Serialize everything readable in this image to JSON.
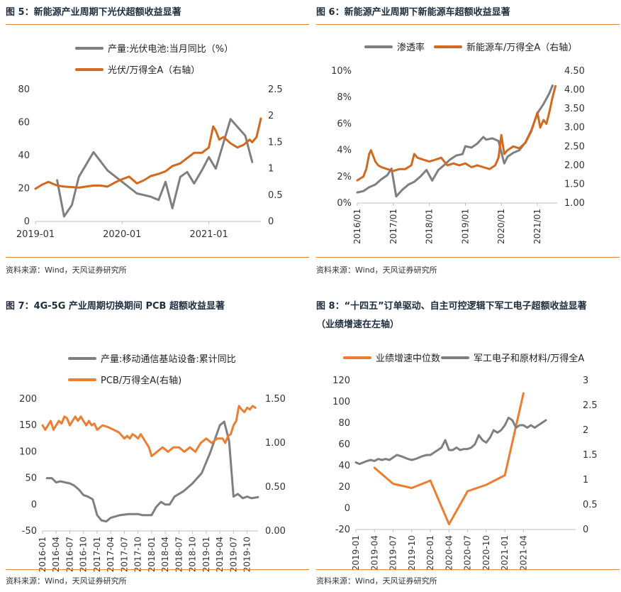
{
  "colors": {
    "gray": "#7f7f7f",
    "orange_dark": "#d2691e",
    "orange": "#ed7d31",
    "rule": "#e08a2e"
  },
  "source": "资料来源：Wind，天风证券研究所",
  "chart_data": [
    {
      "id": "fig5",
      "type": "line",
      "title": "图 5：新能源产业周期下光伏超额收益显著",
      "ylim": [
        0,
        80
      ],
      "yticks": [
        0,
        20,
        40,
        60,
        80
      ],
      "y2lim": [
        0,
        2.5
      ],
      "y2ticks": [
        "0",
        "0.5",
        "1",
        "1.5",
        "2",
        "2.5"
      ],
      "xlim": [
        2019.0,
        2021.6
      ],
      "xticks": [
        {
          "x": 2019.0,
          "label": "2019-01"
        },
        {
          "x": 2020.0,
          "label": "2020-01"
        },
        {
          "x": 2021.0,
          "label": "2021-01"
        }
      ],
      "series": [
        {
          "name": "产量:光伏电池:当月同比（%）",
          "axis": "left",
          "color": "#7f7f7f",
          "x": [
            2019.25,
            2019.33,
            2019.42,
            2019.5,
            2019.67,
            2019.83,
            2020.0,
            2020.17,
            2020.33,
            2020.42,
            2020.5,
            2020.58,
            2020.67,
            2020.75,
            2020.83,
            2020.92,
            2021.0,
            2021.08,
            2021.25,
            2021.42,
            2021.5
          ],
          "y": [
            25,
            3,
            10,
            27,
            42,
            31,
            24,
            17,
            15,
            13,
            24,
            8,
            27,
            30,
            23,
            31,
            39,
            32,
            62,
            52,
            36
          ]
        },
        {
          "name": "光伏/万得全A（右轴）",
          "axis": "right",
          "color": "#d2691e",
          "x": [
            2019.0,
            2019.08,
            2019.15,
            2019.25,
            2019.33,
            2019.42,
            2019.5,
            2019.58,
            2019.67,
            2019.75,
            2019.83,
            2019.92,
            2020.0,
            2020.08,
            2020.17,
            2020.25,
            2020.33,
            2020.42,
            2020.5,
            2020.58,
            2020.67,
            2020.75,
            2020.83,
            2020.92,
            2021.0,
            2021.05,
            2021.08,
            2021.12,
            2021.17,
            2021.25,
            2021.33,
            2021.4,
            2021.47,
            2021.5,
            2021.55,
            2021.6
          ],
          "y": [
            0.62,
            0.7,
            0.75,
            0.68,
            0.66,
            0.65,
            0.64,
            0.66,
            0.68,
            0.68,
            0.66,
            0.74,
            0.8,
            0.85,
            0.72,
            0.78,
            0.86,
            0.9,
            0.95,
            1.05,
            1.1,
            1.2,
            1.3,
            1.3,
            1.4,
            1.8,
            1.72,
            1.55,
            1.6,
            1.48,
            1.4,
            1.45,
            1.55,
            1.5,
            1.6,
            1.95
          ]
        }
      ]
    },
    {
      "id": "fig6",
      "type": "line",
      "title": "图 6：新能源产业周期下新能源车超额收益显著",
      "ylim": [
        0,
        10
      ],
      "yticks": [
        "0%",
        "2%",
        "4%",
        "6%",
        "8%",
        "10%"
      ],
      "y2lim": [
        1.0,
        4.5
      ],
      "y2ticks": [
        "1.00",
        "1.50",
        "2.00",
        "2.50",
        "3.00",
        "3.50",
        "4.00",
        "4.50"
      ],
      "xlim": [
        2016.0,
        2021.55
      ],
      "xticks": [
        {
          "x": 2016.0,
          "label": "2016/01"
        },
        {
          "x": 2017.0,
          "label": "2017/01"
        },
        {
          "x": 2018.0,
          "label": "2018/01"
        },
        {
          "x": 2019.0,
          "label": "2019/01"
        },
        {
          "x": 2020.0,
          "label": "2020/01"
        },
        {
          "x": 2021.0,
          "label": "2021/01"
        }
      ],
      "series": [
        {
          "name": "渗透率",
          "axis": "left",
          "color": "#7f7f7f",
          "x": [
            2016.0,
            2016.17,
            2016.33,
            2016.5,
            2016.67,
            2016.83,
            2016.95,
            2017.08,
            2017.25,
            2017.42,
            2017.58,
            2017.75,
            2017.92,
            2018.08,
            2018.25,
            2018.42,
            2018.58,
            2018.75,
            2018.92,
            2019.0,
            2019.17,
            2019.33,
            2019.5,
            2019.58,
            2019.75,
            2019.92,
            2020.08,
            2020.17,
            2020.33,
            2020.5,
            2020.67,
            2020.83,
            2021.0,
            2021.17,
            2021.33,
            2021.42
          ],
          "y": [
            0.8,
            0.9,
            1.2,
            1.4,
            1.8,
            2.1,
            2.6,
            0.5,
            1.0,
            1.4,
            1.6,
            2.0,
            2.5,
            1.7,
            2.5,
            2.9,
            3.3,
            3.6,
            3.7,
            4.3,
            4.2,
            4.5,
            5.0,
            4.8,
            4.9,
            4.7,
            3.0,
            3.5,
            3.8,
            4.0,
            4.6,
            5.5,
            6.8,
            7.5,
            8.3,
            8.9
          ]
        },
        {
          "name": "新能源车/万得全A（右轴）",
          "axis": "right",
          "color": "#d2691e",
          "x": [
            2016.0,
            2016.08,
            2016.17,
            2016.25,
            2016.33,
            2016.38,
            2016.42,
            2016.5,
            2016.58,
            2016.67,
            2016.83,
            2017.0,
            2017.17,
            2017.33,
            2017.5,
            2017.58,
            2017.67,
            2017.83,
            2018.0,
            2018.17,
            2018.33,
            2018.5,
            2018.67,
            2018.83,
            2019.0,
            2019.17,
            2019.33,
            2019.5,
            2019.67,
            2019.83,
            2019.92,
            2020.0,
            2020.08,
            2020.17,
            2020.33,
            2020.5,
            2020.67,
            2020.83,
            2021.0,
            2021.08,
            2021.17,
            2021.25,
            2021.33,
            2021.42,
            2021.5
          ],
          "y": [
            1.6,
            1.65,
            1.7,
            1.9,
            2.3,
            2.4,
            2.3,
            2.1,
            2.0,
            1.95,
            1.9,
            1.85,
            1.9,
            1.9,
            2.0,
            2.3,
            2.2,
            2.15,
            2.1,
            2.15,
            2.2,
            2.0,
            2.05,
            2.0,
            2.05,
            1.95,
            2.0,
            1.95,
            1.9,
            2.0,
            2.2,
            2.8,
            2.3,
            2.4,
            2.5,
            2.45,
            2.6,
            2.9,
            3.4,
            3.0,
            3.2,
            3.1,
            3.4,
            3.8,
            4.1
          ]
        }
      ]
    },
    {
      "id": "fig7",
      "type": "line",
      "title": "图 7：4G-5G 产业周期切换期间 PCB 超额收益显著",
      "ylim": [
        -50,
        200
      ],
      "yticks": [
        "-50",
        "0",
        "50",
        "100",
        "150",
        "200"
      ],
      "y2lim": [
        0.0,
        1.5
      ],
      "y2ticks": [
        "0.00",
        "0.50",
        "1.00",
        "1.50"
      ],
      "xlim": [
        2016.0,
        2019.95
      ],
      "xticks": [
        {
          "x": 2016.0,
          "label": "2016-01"
        },
        {
          "x": 2016.25,
          "label": "2016-04"
        },
        {
          "x": 2016.5,
          "label": "2016-07"
        },
        {
          "x": 2016.75,
          "label": "2016-10"
        },
        {
          "x": 2017.0,
          "label": "2017-01"
        },
        {
          "x": 2017.25,
          "label": "2017-04"
        },
        {
          "x": 2017.5,
          "label": "2017-07"
        },
        {
          "x": 2017.75,
          "label": "2017-10"
        },
        {
          "x": 2018.0,
          "label": "2018-01"
        },
        {
          "x": 2018.25,
          "label": "2018-04"
        },
        {
          "x": 2018.5,
          "label": "2018-07"
        },
        {
          "x": 2018.75,
          "label": "2018-10"
        },
        {
          "x": 2019.0,
          "label": "2019-01"
        },
        {
          "x": 2019.25,
          "label": "2019-04"
        },
        {
          "x": 2019.5,
          "label": "2019-07"
        },
        {
          "x": 2019.75,
          "label": "2019-10"
        }
      ],
      "series": [
        {
          "name": "产量:移动通信基站设备:累计同比",
          "axis": "left",
          "color": "#7f7f7f",
          "x": [
            2016.08,
            2016.17,
            2016.25,
            2016.33,
            2016.5,
            2016.58,
            2016.67,
            2016.75,
            2016.83,
            2016.92,
            2017.0,
            2017.08,
            2017.17,
            2017.25,
            2017.42,
            2017.58,
            2017.75,
            2017.83,
            2018.0,
            2018.08,
            2018.17,
            2018.25,
            2018.33,
            2018.42,
            2018.58,
            2018.75,
            2018.92,
            2019.08,
            2019.25,
            2019.33,
            2019.42,
            2019.5,
            2019.58,
            2019.67,
            2019.75,
            2019.83,
            2019.95
          ],
          "y": [
            50,
            50,
            42,
            44,
            40,
            36,
            28,
            18,
            15,
            10,
            -20,
            -30,
            -32,
            -25,
            -20,
            -18,
            -18,
            -20,
            -20,
            -5,
            5,
            0,
            0,
            15,
            25,
            40,
            60,
            100,
            150,
            157,
            120,
            15,
            20,
            12,
            15,
            12,
            14
          ]
        },
        {
          "name": "PCB/万得全A(右轴)",
          "axis": "right",
          "color": "#ed7d31",
          "x": [
            2016.0,
            2016.05,
            2016.1,
            2016.15,
            2016.2,
            2016.25,
            2016.3,
            2016.35,
            2016.4,
            2016.45,
            2016.5,
            2016.55,
            2016.6,
            2016.65,
            2016.7,
            2016.75,
            2016.8,
            2016.85,
            2016.9,
            2016.95,
            2017.0,
            2017.1,
            2017.2,
            2017.3,
            2017.4,
            2017.5,
            2017.55,
            2017.6,
            2017.65,
            2017.7,
            2017.75,
            2017.8,
            2017.85,
            2017.9,
            2017.95,
            2018.0,
            2018.1,
            2018.2,
            2018.3,
            2018.4,
            2018.5,
            2018.6,
            2018.7,
            2018.8,
            2018.9,
            2019.0,
            2019.1,
            2019.2,
            2019.3,
            2019.35,
            2019.4,
            2019.45,
            2019.5,
            2019.55,
            2019.6,
            2019.65,
            2019.7,
            2019.75,
            2019.8,
            2019.85,
            2019.9
          ],
          "y": [
            1.2,
            1.15,
            1.2,
            1.25,
            1.15,
            1.2,
            1.25,
            1.22,
            1.3,
            1.28,
            1.2,
            1.25,
            1.3,
            1.25,
            1.3,
            1.25,
            1.2,
            1.25,
            1.2,
            1.22,
            1.15,
            1.2,
            1.18,
            1.15,
            1.12,
            1.05,
            1.08,
            1.05,
            1.1,
            1.08,
            1.05,
            1.1,
            1.05,
            1.0,
            0.95,
            0.85,
            0.9,
            0.95,
            0.9,
            0.95,
            0.95,
            0.9,
            0.95,
            0.9,
            1.0,
            1.05,
            1.0,
            1.05,
            1.05,
            1.0,
            1.08,
            1.1,
            1.2,
            1.25,
            1.42,
            1.38,
            1.35,
            1.4,
            1.38,
            1.42,
            1.4
          ]
        }
      ]
    },
    {
      "id": "fig8",
      "type": "line",
      "title": "图 8：“十四五”订单驱动、自主可控逻辑下军工电子超额收益显著",
      "title2": "（业绩增速在左轴）",
      "ylim": [
        -20,
        120
      ],
      "yticks": [
        "-20",
        "0",
        "20",
        "40",
        "60",
        "80",
        "100",
        "120"
      ],
      "y2lim": [
        0,
        3
      ],
      "y2ticks": [
        "0",
        "0.5",
        "1",
        "1.5",
        "2",
        "2.5",
        "3"
      ],
      "xlim": [
        2019.0,
        2021.95
      ],
      "xticks": [
        {
          "x": 2019.0,
          "label": "2019-01"
        },
        {
          "x": 2019.25,
          "label": "2019-04"
        },
        {
          "x": 2019.5,
          "label": "2019-07"
        },
        {
          "x": 2019.75,
          "label": "2019-10"
        },
        {
          "x": 2020.0,
          "label": "2020-01"
        },
        {
          "x": 2020.25,
          "label": "2020-04"
        },
        {
          "x": 2020.5,
          "label": "2020-07"
        },
        {
          "x": 2020.75,
          "label": "2020-10"
        },
        {
          "x": 2021.0,
          "label": "2021-01"
        },
        {
          "x": 2021.25,
          "label": "2021-04"
        }
      ],
      "series": [
        {
          "name": "业绩增速中位数",
          "axis": "left",
          "color": "#ed7d31",
          "x": [
            2019.25,
            2019.5,
            2019.75,
            2020.0,
            2020.25,
            2020.5,
            2020.75,
            2021.0,
            2021.25
          ],
          "y": [
            38,
            23,
            19,
            26,
            -15,
            16,
            22,
            31,
            108
          ]
        },
        {
          "name": "军工电子和原材料/万得全A",
          "axis": "right",
          "color": "#7f7f7f",
          "x": [
            2019.0,
            2019.05,
            2019.1,
            2019.15,
            2019.2,
            2019.25,
            2019.3,
            2019.35,
            2019.4,
            2019.45,
            2019.5,
            2019.55,
            2019.6,
            2019.65,
            2019.7,
            2019.75,
            2019.8,
            2019.85,
            2019.9,
            2019.95,
            2020.0,
            2020.05,
            2020.1,
            2020.15,
            2020.2,
            2020.25,
            2020.3,
            2020.35,
            2020.4,
            2020.45,
            2020.5,
            2020.55,
            2020.6,
            2020.65,
            2020.7,
            2020.75,
            2020.8,
            2020.85,
            2020.9,
            2020.95,
            2021.0,
            2021.05,
            2021.1,
            2021.15,
            2021.2,
            2021.25,
            2021.3,
            2021.35,
            2021.4,
            2021.45,
            2021.5,
            2021.55
          ],
          "y": [
            1.35,
            1.32,
            1.35,
            1.38,
            1.4,
            1.38,
            1.42,
            1.4,
            1.42,
            1.4,
            1.45,
            1.5,
            1.48,
            1.45,
            1.42,
            1.4,
            1.42,
            1.45,
            1.48,
            1.5,
            1.5,
            1.55,
            1.6,
            1.65,
            1.8,
            1.6,
            1.6,
            1.65,
            1.6,
            1.62,
            1.62,
            1.65,
            1.72,
            1.9,
            1.8,
            1.75,
            1.85,
            2.0,
            1.95,
            2.0,
            2.1,
            2.25,
            2.2,
            2.05,
            2.1,
            2.1,
            2.05,
            2.1,
            2.05,
            2.1,
            2.15,
            2.2
          ]
        }
      ]
    }
  ]
}
